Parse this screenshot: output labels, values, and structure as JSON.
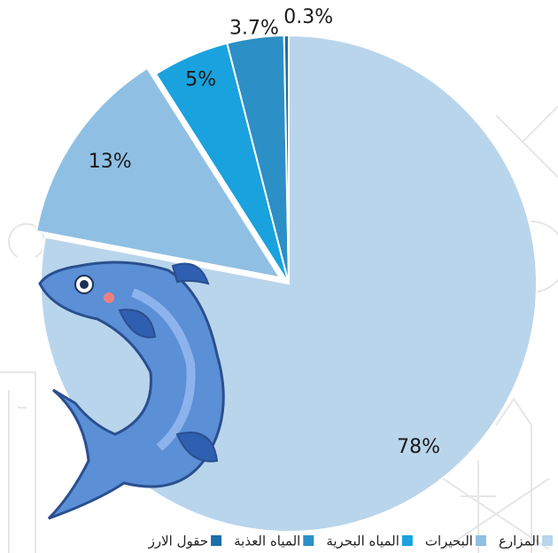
{
  "chart_data": {
    "type": "pie",
    "categories": [
      "المزارع",
      "البحيرات",
      "المياه البحرية",
      "المياه العذبة",
      "حقول الارز"
    ],
    "values": [
      78,
      13,
      5,
      3.7,
      0.3
    ],
    "value_labels": [
      "78%",
      "13%",
      "5%",
      "3.7%",
      "0.3%"
    ],
    "colors": [
      "#b9d5ec",
      "#8fc0e3",
      "#19a2de",
      "#2c8fc6",
      "#1b6fa6"
    ],
    "exploded": [
      false,
      true,
      false,
      false,
      false
    ],
    "legend": "bottom"
  }
}
